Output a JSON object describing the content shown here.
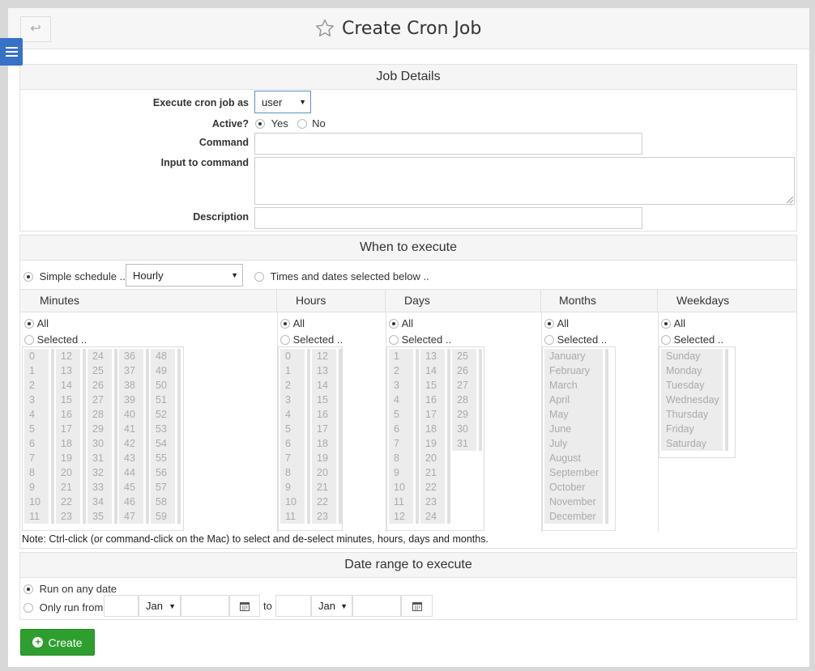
{
  "header": {
    "back_icon": "↩",
    "title": "Create Cron Job"
  },
  "job_details": {
    "heading": "Job Details",
    "execute_as_label": "Execute cron job as",
    "execute_as_value": "user",
    "active_label": "Active?",
    "active_yes": "Yes",
    "active_no": "No",
    "command_label": "Command",
    "input_label": "Input to command",
    "description_label": "Description"
  },
  "when": {
    "heading": "When to execute",
    "simple_label": "Simple schedule ..",
    "simple_value": "Hourly",
    "times_label": "Times and dates selected below ..",
    "columns": {
      "minutes": "Minutes",
      "hours": "Hours",
      "days": "Days",
      "months": "Months",
      "weekdays": "Weekdays"
    },
    "all_label": "All",
    "selected_label": "Selected ..",
    "minutes": [
      [
        "0",
        "1",
        "2",
        "3",
        "4",
        "5",
        "6",
        "7",
        "8",
        "9",
        "10",
        "11"
      ],
      [
        "12",
        "13",
        "14",
        "15",
        "16",
        "17",
        "18",
        "19",
        "20",
        "21",
        "22",
        "23"
      ],
      [
        "24",
        "25",
        "26",
        "27",
        "28",
        "29",
        "30",
        "31",
        "32",
        "33",
        "34",
        "35"
      ],
      [
        "36",
        "37",
        "38",
        "39",
        "40",
        "41",
        "42",
        "43",
        "44",
        "45",
        "46",
        "47"
      ],
      [
        "48",
        "49",
        "50",
        "51",
        "52",
        "53",
        "54",
        "55",
        "56",
        "57",
        "58",
        "59"
      ]
    ],
    "hours": [
      [
        "0",
        "1",
        "2",
        "3",
        "4",
        "5",
        "6",
        "7",
        "8",
        "9",
        "10",
        "11"
      ],
      [
        "12",
        "13",
        "14",
        "15",
        "16",
        "17",
        "18",
        "19",
        "20",
        "21",
        "22",
        "23"
      ]
    ],
    "days": [
      [
        "1",
        "2",
        "3",
        "4",
        "5",
        "6",
        "7",
        "8",
        "9",
        "10",
        "11",
        "12"
      ],
      [
        "13",
        "14",
        "15",
        "16",
        "17",
        "18",
        "19",
        "20",
        "21",
        "22",
        "23",
        "24"
      ],
      [
        "25",
        "26",
        "27",
        "28",
        "29",
        "30",
        "31"
      ]
    ],
    "months": [
      [
        "January",
        "February",
        "March",
        "April",
        "May",
        "June",
        "July",
        "August",
        "September",
        "October",
        "November",
        "December"
      ]
    ],
    "weekdays": [
      [
        "Sunday",
        "Monday",
        "Tuesday",
        "Wednesday",
        "Thursday",
        "Friday",
        "Saturday"
      ]
    ],
    "note": "Note: Ctrl-click (or command-click on the Mac) to select and de-select minutes, hours, days and months."
  },
  "date_range": {
    "heading": "Date range to execute",
    "any_date_label": "Run on any date",
    "only_from_label": "Only run from",
    "from_month": "Jan",
    "to_label": "to",
    "to_month": "Jan"
  },
  "create_button": "Create",
  "colors": {
    "create_green": "#2e9f2e",
    "menu_blue": "#3771c8"
  }
}
